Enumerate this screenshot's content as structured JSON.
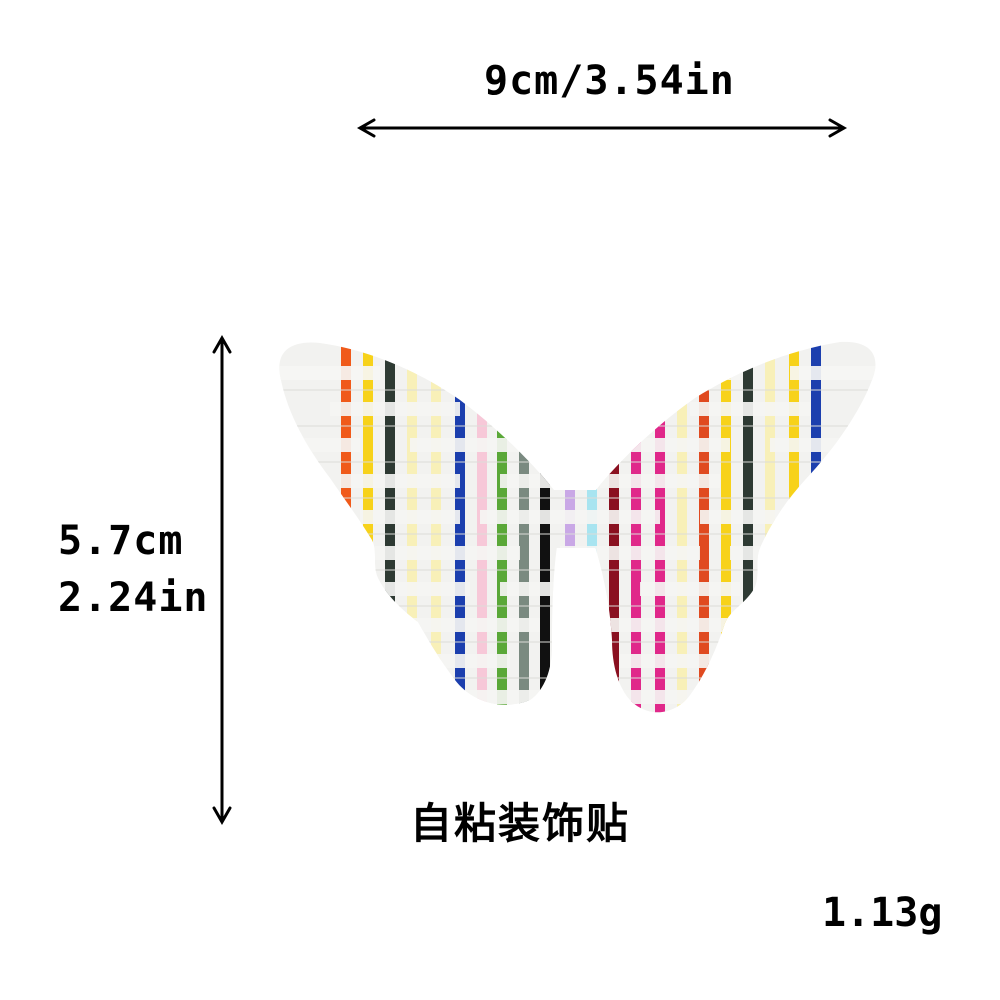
{
  "dimensions": {
    "width_text": "9cm/3.54in",
    "height_cm_text": "5.7cm",
    "height_in_text": "2.24in"
  },
  "caption": "自粘装饰贴",
  "weight": "1.13g",
  "colors": {
    "background": "#ffffff",
    "text": "#000000",
    "arrow": "#000000",
    "base_weave": "#f2f2f0",
    "stripes": [
      "#f05a1a",
      "#f7d21a",
      "#2e3a33",
      "#f8f0b8",
      "#1c3fae",
      "#f7c8d8",
      "#5aa838",
      "#7a8a80",
      "#111111",
      "#c9a8e6",
      "#a8e4f0",
      "#8a1020",
      "#e0288a",
      "#e04a20"
    ]
  },
  "product": {
    "image_subject": "butterfly-shaped woven raffia sticker with rainbow stripes"
  }
}
